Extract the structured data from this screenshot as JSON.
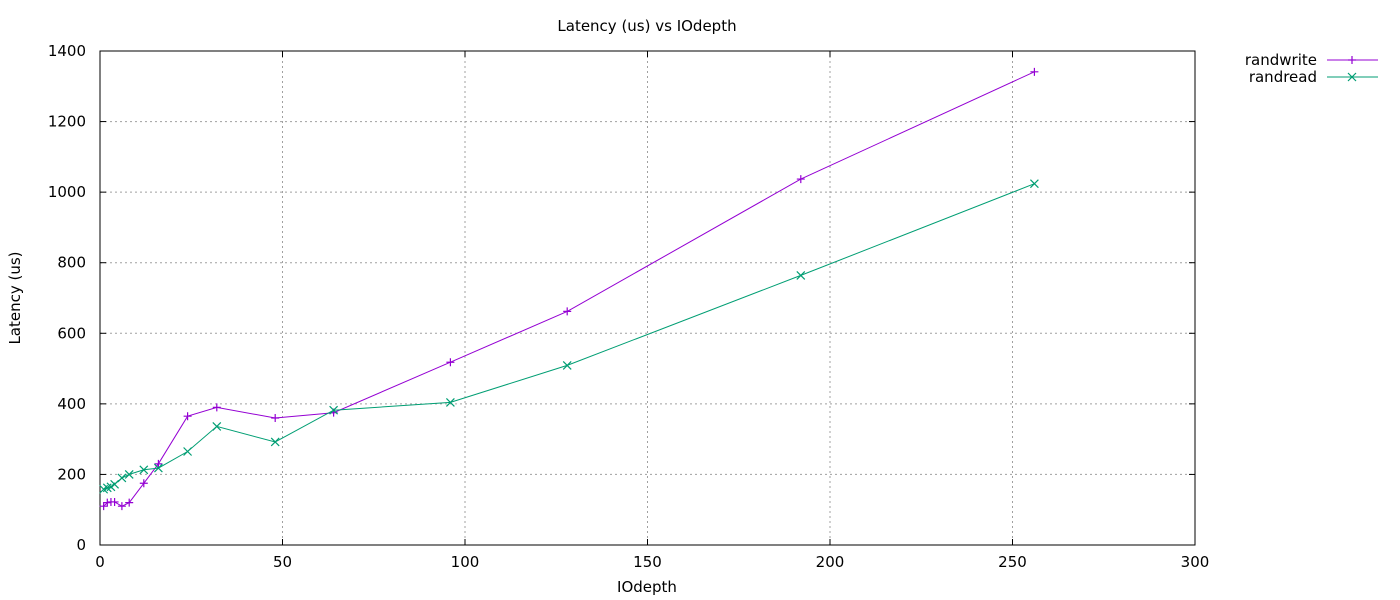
{
  "chart_data": {
    "type": "line",
    "title": "Latency (us) vs IOdepth",
    "xlabel": "IOdepth",
    "ylabel": "Latency (us)",
    "xlim": [
      0,
      300
    ],
    "ylim": [
      0,
      1400
    ],
    "xticks": [
      0,
      50,
      100,
      150,
      200,
      250,
      300
    ],
    "yticks": [
      0,
      200,
      400,
      600,
      800,
      1000,
      1200,
      1400
    ],
    "grid": true,
    "legend_position": "outside-top-right",
    "series": [
      {
        "name": "randwrite",
        "color": "#9400d3",
        "marker": "plus",
        "x": [
          1,
          2,
          3,
          4,
          6,
          8,
          12,
          16,
          24,
          32,
          48,
          64,
          96,
          128,
          192,
          256
        ],
        "y": [
          110,
          120,
          122,
          122,
          110,
          120,
          175,
          230,
          365,
          390,
          360,
          375,
          518,
          662,
          1037,
          1341
        ]
      },
      {
        "name": "randread",
        "color": "#009e73",
        "marker": "cross",
        "x": [
          1,
          2,
          3,
          4,
          6,
          8,
          12,
          16,
          24,
          32,
          48,
          64,
          96,
          128,
          192,
          256
        ],
        "y": [
          158,
          162,
          165,
          172,
          190,
          200,
          213,
          218,
          265,
          336,
          292,
          382,
          404,
          509,
          764,
          1024
        ]
      }
    ]
  }
}
